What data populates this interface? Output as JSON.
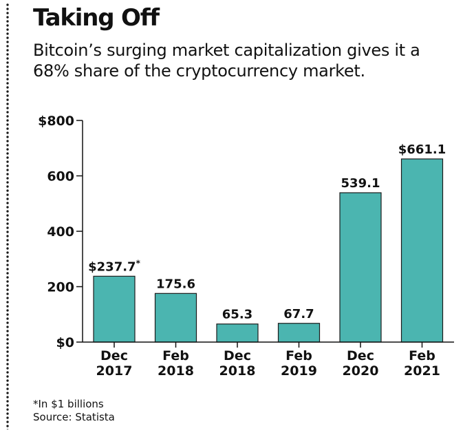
{
  "header": {
    "title": "Taking Off",
    "subtitle": "Bitcoin’s surging market capitalization gives it a 68% share of the cryptocurrency market."
  },
  "chart_data": {
    "type": "bar",
    "categories": [
      [
        "Dec",
        "2017"
      ],
      [
        "Feb",
        "2018"
      ],
      [
        "Dec",
        "2018"
      ],
      [
        "Feb",
        "2019"
      ],
      [
        "Dec",
        "2020"
      ],
      [
        "Feb",
        "2021"
      ]
    ],
    "values": [
      237.7,
      175.6,
      65.3,
      67.7,
      539.1,
      661.1
    ],
    "data_labels": [
      "$237.7",
      "175.6",
      "65.3",
      "67.7",
      "539.1",
      "$661.1"
    ],
    "data_label_marker": {
      "index": 0,
      "text": "*"
    },
    "yticks": [
      0,
      200,
      400,
      600,
      800
    ],
    "ytick_labels": [
      "$0",
      "200",
      "400",
      "600",
      "$800"
    ],
    "ylim": [
      0,
      800
    ],
    "bar_color": "#4bb5b0",
    "bar_edge_color": "#1a1a1a",
    "grid": false,
    "legend": "none"
  },
  "footer": {
    "footnote": "*In $1 billions",
    "source": "Source: Statista"
  }
}
